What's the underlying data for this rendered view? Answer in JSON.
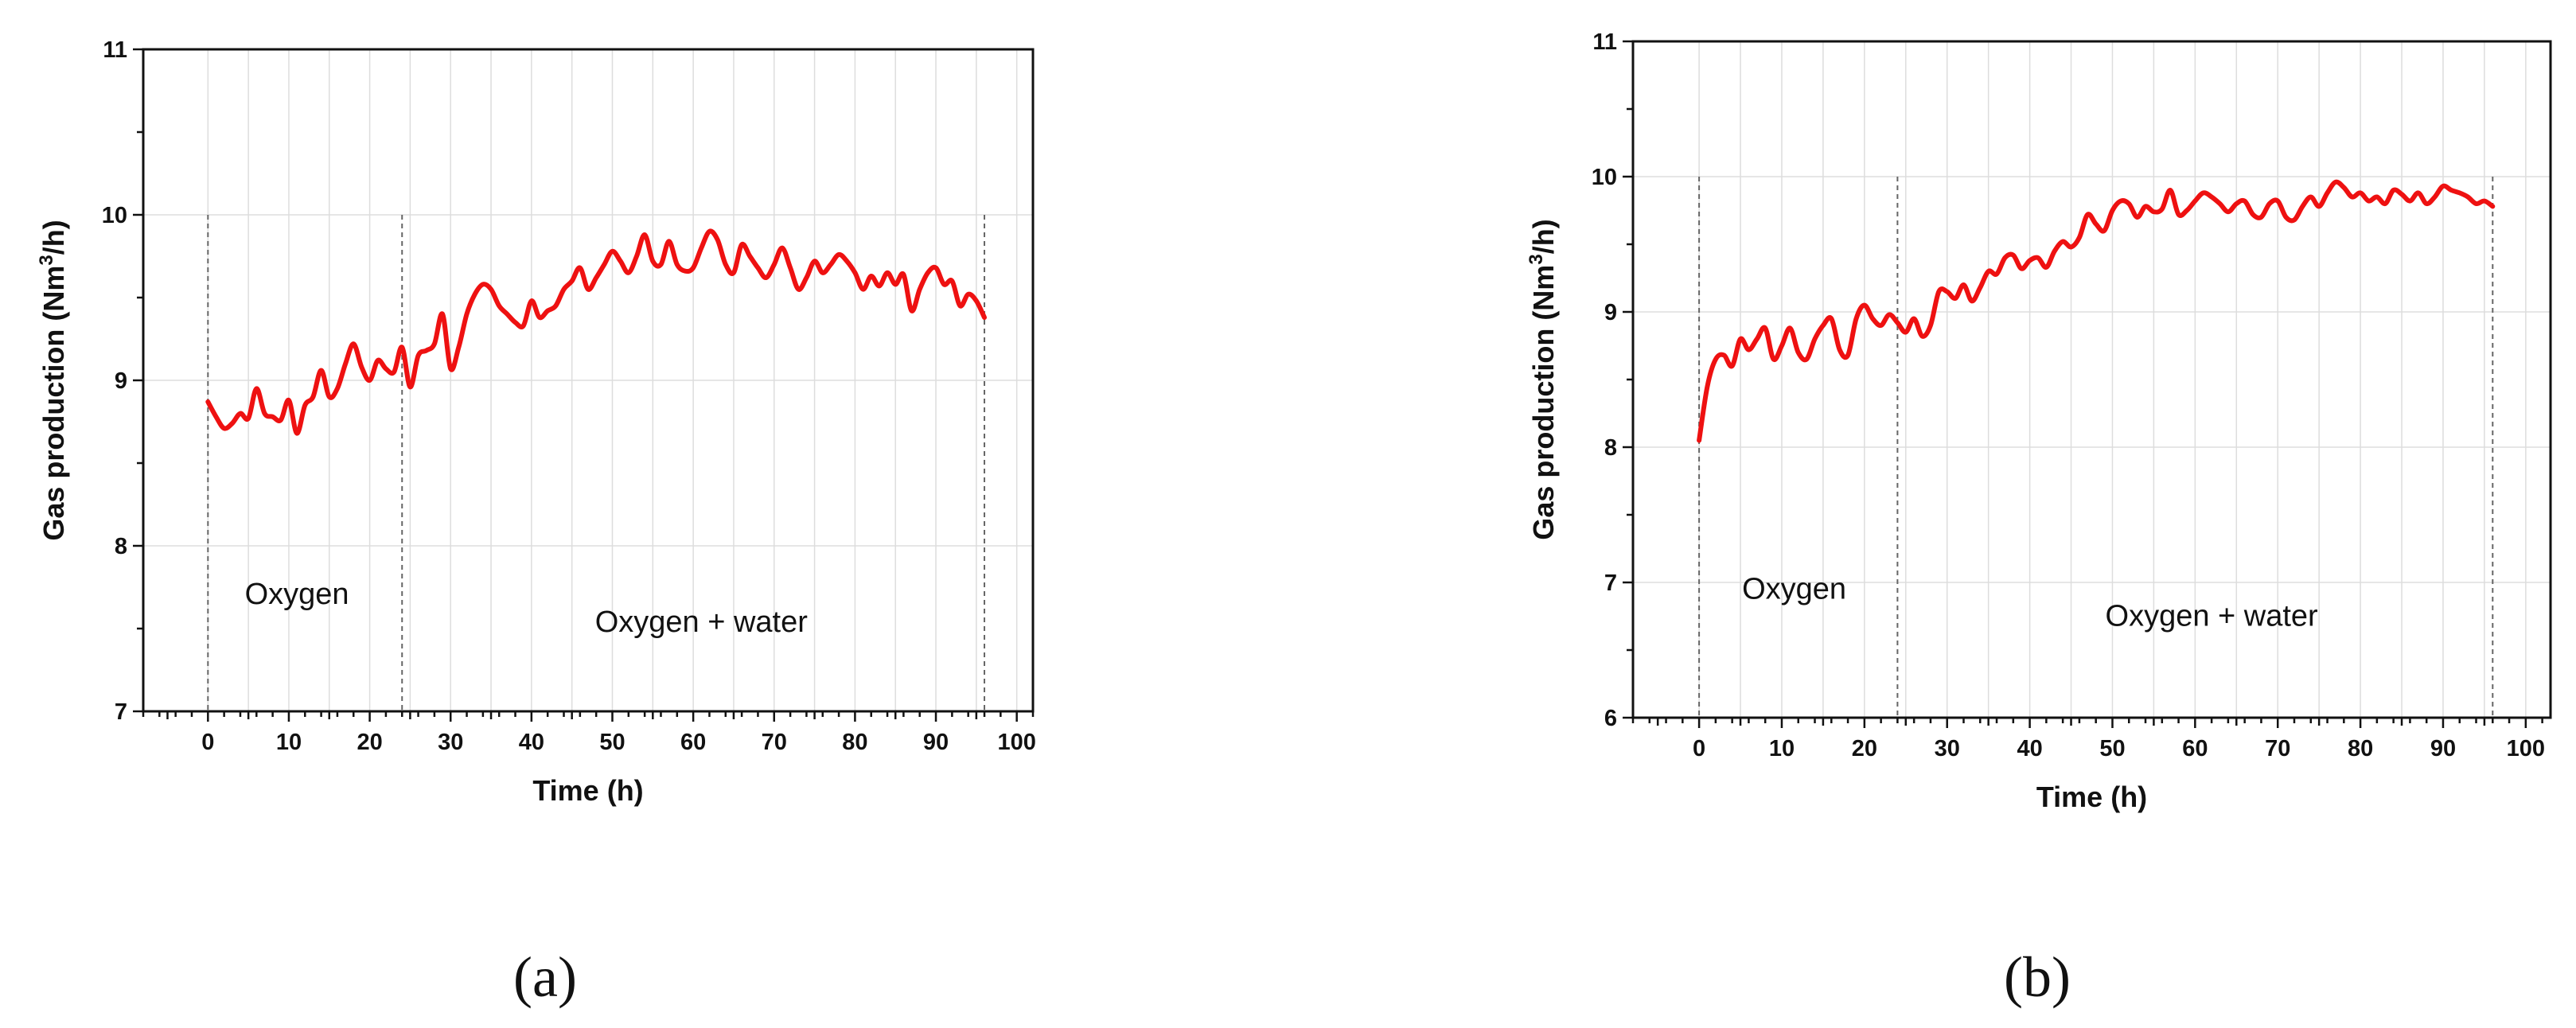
{
  "colors": {
    "series": "#ee1111",
    "axis": "#111111",
    "grid": "#dddddd",
    "phase_line": "#666666"
  },
  "chart_data": [
    {
      "type": "line",
      "panel_label": "(a)",
      "title": "",
      "xlabel": "Time (h)",
      "ylabel_main": "Gas production (Nm",
      "ylabel_sup": "3",
      "ylabel_tail": "/h)",
      "xlim": [
        -8,
        102
      ],
      "ylim": [
        7,
        11
      ],
      "xticks": [
        0,
        10,
        20,
        30,
        40,
        50,
        60,
        70,
        80,
        90,
        100
      ],
      "yticks": [
        7,
        8,
        9,
        10,
        11
      ],
      "grid": true,
      "phase_lines": [
        0,
        24,
        96
      ],
      "annotations": [
        {
          "text": "Oxygen",
          "x": 11,
          "y": 7.65
        },
        {
          "text": "Oxygen + water",
          "x": 61,
          "y": 7.48
        }
      ],
      "series": [
        {
          "x": [
            0,
            1,
            2,
            3,
            4,
            5,
            6,
            7,
            8,
            9,
            10,
            11,
            12,
            13,
            14,
            15,
            16,
            17,
            18,
            19,
            20,
            21,
            22,
            23,
            24,
            25,
            26,
            27,
            28,
            29,
            30,
            31,
            32,
            33,
            34,
            35,
            36,
            37,
            38,
            39,
            40,
            41,
            42,
            43,
            44,
            45,
            46,
            47,
            48,
            49,
            50,
            51,
            52,
            53,
            54,
            55,
            56,
            57,
            58,
            59,
            60,
            61,
            62,
            63,
            64,
            65,
            66,
            67,
            68,
            69,
            70,
            71,
            72,
            73,
            74,
            75,
            76,
            77,
            78,
            79,
            80,
            81,
            82,
            83,
            84,
            85,
            86,
            87,
            88,
            89,
            90,
            91,
            92,
            93,
            94,
            95,
            96
          ],
          "y": [
            8.87,
            8.78,
            8.71,
            8.74,
            8.8,
            8.77,
            8.95,
            8.8,
            8.78,
            8.76,
            8.88,
            8.68,
            8.85,
            8.9,
            9.06,
            8.9,
            8.95,
            9.1,
            9.22,
            9.08,
            9.0,
            9.12,
            9.07,
            9.05,
            9.2,
            8.96,
            9.15,
            9.18,
            9.22,
            9.4,
            9.07,
            9.2,
            9.4,
            9.52,
            9.58,
            9.55,
            9.45,
            9.4,
            9.35,
            9.33,
            9.48,
            9.38,
            9.42,
            9.45,
            9.55,
            9.6,
            9.68,
            9.55,
            9.62,
            9.7,
            9.78,
            9.72,
            9.65,
            9.75,
            9.88,
            9.72,
            9.7,
            9.84,
            9.7,
            9.66,
            9.68,
            9.8,
            9.9,
            9.85,
            9.7,
            9.65,
            9.82,
            9.75,
            9.68,
            9.62,
            9.7,
            9.8,
            9.68,
            9.55,
            9.62,
            9.72,
            9.65,
            9.7,
            9.76,
            9.72,
            9.65,
            9.55,
            9.63,
            9.57,
            9.65,
            9.58,
            9.64,
            9.42,
            9.55,
            9.65,
            9.68,
            9.58,
            9.6,
            9.45,
            9.52,
            9.48,
            9.38
          ]
        }
      ]
    },
    {
      "type": "line",
      "panel_label": "(b)",
      "title": "",
      "xlabel": "Time (h)",
      "ylabel_main": "Gas production (Nm",
      "ylabel_sup": "3",
      "ylabel_tail": "/h)",
      "xlim": [
        -8,
        103
      ],
      "ylim": [
        6,
        11
      ],
      "xticks": [
        0,
        10,
        20,
        30,
        40,
        50,
        60,
        70,
        80,
        90,
        100
      ],
      "yticks": [
        6,
        7,
        8,
        9,
        10,
        11
      ],
      "grid": true,
      "phase_lines": [
        0,
        24,
        96
      ],
      "annotations": [
        {
          "text": "Oxygen",
          "x": 11.5,
          "y": 6.88
        },
        {
          "text": "Oxygen + water",
          "x": 62,
          "y": 6.68
        }
      ],
      "series": [
        {
          "x": [
            0,
            1,
            2,
            3,
            4,
            5,
            6,
            7,
            8,
            9,
            10,
            11,
            12,
            13,
            14,
            15,
            16,
            17,
            18,
            19,
            20,
            21,
            22,
            23,
            24,
            25,
            26,
            27,
            28,
            29,
            30,
            31,
            32,
            33,
            34,
            35,
            36,
            37,
            38,
            39,
            40,
            41,
            42,
            43,
            44,
            45,
            46,
            47,
            48,
            49,
            50,
            51,
            52,
            53,
            54,
            55,
            56,
            57,
            58,
            59,
            60,
            61,
            62,
            63,
            64,
            65,
            66,
            67,
            68,
            69,
            70,
            71,
            72,
            73,
            74,
            75,
            76,
            77,
            78,
            79,
            80,
            81,
            82,
            83,
            84,
            85,
            86,
            87,
            88,
            89,
            90,
            91,
            92,
            93,
            94,
            95,
            96
          ],
          "y": [
            8.05,
            8.45,
            8.65,
            8.68,
            8.6,
            8.8,
            8.72,
            8.8,
            8.88,
            8.65,
            8.75,
            8.88,
            8.7,
            8.65,
            8.8,
            8.9,
            8.95,
            8.72,
            8.68,
            8.95,
            9.05,
            8.95,
            8.9,
            8.98,
            8.92,
            8.85,
            8.95,
            8.82,
            8.9,
            9.15,
            9.15,
            9.1,
            9.2,
            9.08,
            9.18,
            9.3,
            9.28,
            9.4,
            9.42,
            9.32,
            9.38,
            9.4,
            9.33,
            9.45,
            9.52,
            9.48,
            9.55,
            9.72,
            9.65,
            9.6,
            9.75,
            9.82,
            9.8,
            9.7,
            9.78,
            9.74,
            9.76,
            9.9,
            9.72,
            9.75,
            9.82,
            9.88,
            9.85,
            9.8,
            9.74,
            9.8,
            9.82,
            9.72,
            9.7,
            9.8,
            9.82,
            9.7,
            9.68,
            9.78,
            9.85,
            9.78,
            9.88,
            9.96,
            9.92,
            9.85,
            9.88,
            9.82,
            9.85,
            9.8,
            9.9,
            9.87,
            9.82,
            9.88,
            9.8,
            9.85,
            9.93,
            9.9,
            9.88,
            9.85,
            9.8,
            9.82,
            9.78
          ]
        }
      ]
    }
  ]
}
